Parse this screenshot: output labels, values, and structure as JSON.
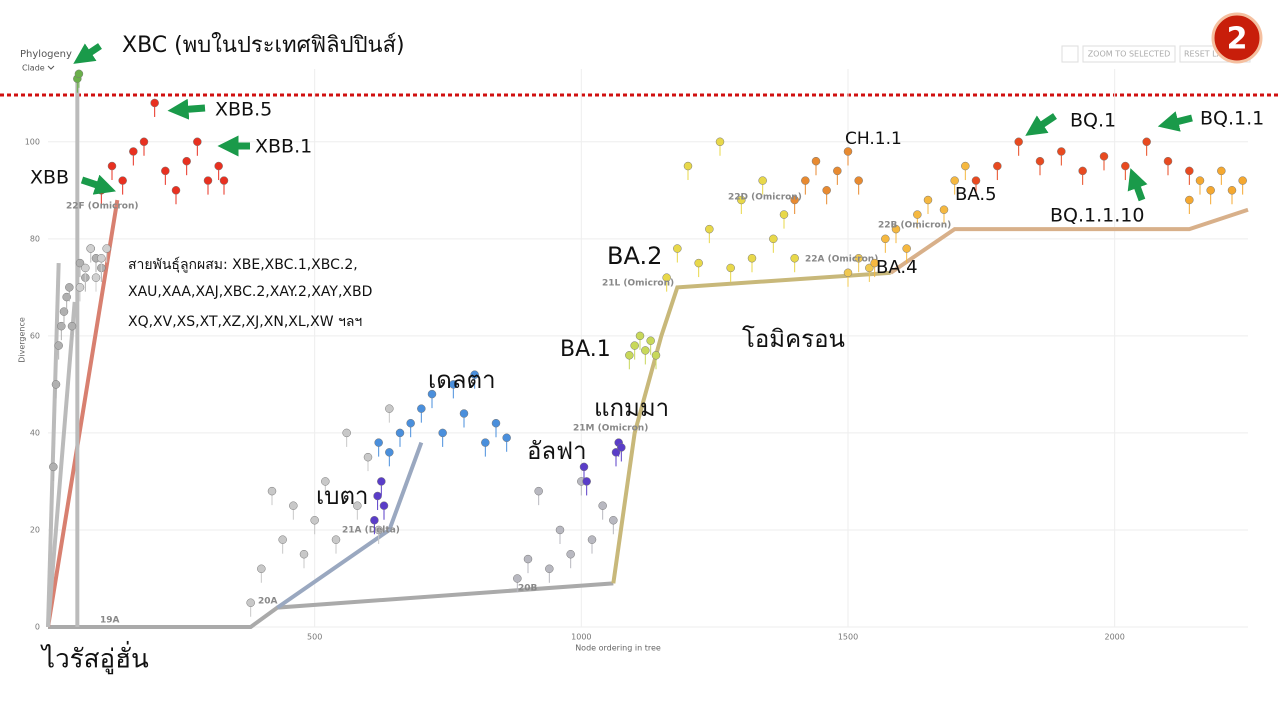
{
  "ui": {
    "panel_title": "Phylogeny",
    "color_by": "Clade",
    "buttons": [
      "ZOOM TO SELECTED",
      "RESET LAYOUT"
    ],
    "badge": "2"
  },
  "chart_data": {
    "type": "scatter",
    "x_label": "Node ordering in tree",
    "y_label": "Divergence",
    "xlim": [
      0,
      2250
    ],
    "xticks": [
      500,
      1000,
      1500,
      2000
    ],
    "ylim": [
      0,
      115
    ],
    "yticks": [
      0,
      20,
      40,
      60,
      80,
      100
    ],
    "grid": true,
    "branches": [
      {
        "color": "#aaaaaa",
        "x": [
          0,
          380,
          430,
          1060
        ],
        "y": [
          0,
          0,
          4,
          9
        ]
      },
      {
        "color": "#c8b87a",
        "x": [
          1060,
          1100,
          1150,
          1180,
          1580
        ],
        "y": [
          9,
          40,
          60,
          70,
          73
        ]
      },
      {
        "color": "#d8b08a",
        "x": [
          1580,
          1700,
          2140,
          2250
        ],
        "y": [
          73,
          82,
          82,
          86
        ]
      },
      {
        "color": "#d88070",
        "x": [
          0,
          130
        ],
        "y": [
          0,
          88
        ]
      },
      {
        "color": "#bbbbbb",
        "x": [
          0,
          20
        ],
        "y": [
          0,
          75
        ]
      },
      {
        "color": "#bbbbbb",
        "x": [
          0,
          50
        ],
        "y": [
          0,
          67
        ]
      },
      {
        "color": "#9aa8c0",
        "x": [
          430,
          640,
          700
        ],
        "y": [
          4,
          20,
          38
        ]
      },
      {
        "color": "#bbbbbb",
        "x": [
          55,
          55
        ],
        "y": [
          0,
          113
        ]
      }
    ],
    "series": [
      {
        "name": "19A",
        "color": "#b0b0b0",
        "x": [
          10,
          15,
          20,
          25,
          30,
          35,
          40,
          45,
          60,
          70,
          80,
          90,
          100
        ],
        "y": [
          33,
          50,
          58,
          62,
          65,
          68,
          70,
          62,
          75,
          72,
          78,
          76,
          74
        ]
      },
      {
        "name": "20A",
        "color": "#c8c8c8",
        "x": [
          380,
          400,
          420,
          440,
          460,
          480,
          500,
          520,
          540,
          560,
          580,
          600,
          620,
          640
        ],
        "y": [
          5,
          12,
          28,
          18,
          25,
          15,
          22,
          30,
          18,
          40,
          25,
          35,
          20,
          45
        ]
      },
      {
        "name": "20B",
        "color": "#b8b8c0",
        "x": [
          880,
          900,
          920,
          940,
          960,
          980,
          1000,
          1020,
          1040,
          1060
        ],
        "y": [
          10,
          14,
          28,
          12,
          20,
          15,
          30,
          18,
          25,
          22
        ]
      },
      {
        "name": "21A (Delta)",
        "color": "#4a8fdc",
        "x": [
          620,
          640,
          660,
          680,
          700,
          720,
          740,
          760,
          780,
          800,
          820,
          840,
          860
        ],
        "y": [
          38,
          36,
          40,
          42,
          45,
          48,
          40,
          50,
          44,
          52,
          38,
          42,
          39
        ]
      },
      {
        "color": "#5a3dc8",
        "x": [
          612,
          618,
          625,
          630,
          1005,
          1010,
          1065,
          1070,
          1075
        ],
        "y": [
          22,
          27,
          30,
          25,
          33,
          30,
          36,
          38,
          37
        ]
      },
      {
        "name": "21M (Omicron)",
        "color": "#c8d85a",
        "x": [
          1090,
          1100,
          1110,
          1120,
          1130,
          1140
        ],
        "y": [
          56,
          58,
          60,
          57,
          59,
          56
        ]
      },
      {
        "name": "21L (Omicron)",
        "color": "#e8d84a",
        "x": [
          1160,
          1180,
          1200,
          1220,
          1240,
          1260,
          1280,
          1300,
          1320,
          1340,
          1360,
          1380,
          1400
        ],
        "y": [
          72,
          78,
          95,
          75,
          82,
          100,
          74,
          88,
          76,
          92,
          80,
          85,
          76
        ]
      },
      {
        "name": "22D (Omicron)",
        "color": "#e88a30",
        "x": [
          1400,
          1420,
          1440,
          1460,
          1480,
          1500,
          1520
        ],
        "y": [
          88,
          92,
          96,
          90,
          94,
          98,
          92
        ]
      },
      {
        "name": "22A (Omicron)",
        "color": "#f0c850",
        "x": [
          1500,
          1520,
          1540
        ],
        "y": [
          73,
          76,
          74
        ]
      },
      {
        "name": "22B (Omicron)",
        "color": "#f5b840",
        "x": [
          1550,
          1570,
          1590,
          1610,
          1630,
          1650,
          1680,
          1700,
          1720
        ],
        "y": [
          75,
          80,
          82,
          78,
          85,
          88,
          86,
          92,
          95
        ]
      },
      {
        "color": "#e84a20",
        "x": [
          1740,
          1780,
          1820,
          1860,
          1900,
          1940,
          1980,
          2020,
          2060,
          2100,
          2140
        ],
        "y": [
          92,
          95,
          100,
          96,
          98,
          94,
          97,
          95,
          100,
          96,
          94
        ]
      },
      {
        "color": "#f5a830",
        "x": [
          2140,
          2160,
          2180,
          2200,
          2220,
          2240
        ],
        "y": [
          88,
          92,
          90,
          94,
          90,
          92
        ]
      },
      {
        "name": "22F (Omicron)",
        "color": "#e83020",
        "x": [
          100,
          120,
          140,
          160,
          180,
          200,
          220,
          240,
          260,
          280,
          300,
          320,
          330
        ],
        "y": [
          90,
          95,
          92,
          98,
          100,
          108,
          94,
          90,
          96,
          100,
          92,
          95,
          92
        ]
      },
      {
        "color": "#6ab04a",
        "x": [
          55,
          58
        ],
        "y": [
          113,
          114
        ]
      },
      {
        "color": "#d0d0d0",
        "x": [
          60,
          70,
          80,
          90,
          100,
          110
        ],
        "y": [
          70,
          74,
          78,
          72,
          76,
          78
        ]
      }
    ],
    "annotations": [
      "XBC (พบในประเทศฟิลิปปินส์)",
      "XBB.5",
      "XBB.1",
      "XBB",
      "สายพันธุ์ลูกผสม:  XBE,XBC.1,XBC.2,",
      "XAU,XAA,XAJ,XBC.2,XAY.2,XAY,XBD",
      "XQ,XV,XS,XT,XZ,XJ,XN,XL,XW  ฯลฯ",
      "เดลตา",
      "เบตา",
      "อัลฟา",
      "แกมมา",
      "BA.1",
      "BA.2",
      "โอมิครอน",
      "CH.1.1",
      "BA.5",
      "BA.4",
      "BQ.1",
      "BQ.1.1",
      "BQ.1.1.10",
      "ไวรัสอู่ฮั่น"
    ]
  }
}
